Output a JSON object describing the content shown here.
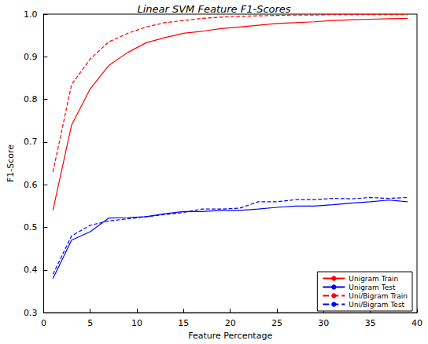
{
  "chart_data": {
    "type": "line",
    "title": "Linear SVM Feature F1-Scores",
    "x_label": "Feature Percentage",
    "y_label": "F1-Score",
    "x": [
      1,
      3,
      5,
      7,
      9,
      11,
      13,
      15,
      17,
      19,
      21,
      23,
      25,
      27,
      29,
      31,
      33,
      35,
      37,
      39
    ],
    "series": [
      {
        "name": "Unigram Train",
        "color": "#ff0000",
        "line_style": "solid",
        "marker": "none",
        "values": [
          0.54,
          0.74,
          0.825,
          0.88,
          0.91,
          0.933,
          0.945,
          0.955,
          0.96,
          0.966,
          0.97,
          0.974,
          0.978,
          0.98,
          0.982,
          0.985,
          0.987,
          0.988,
          0.989,
          0.99
        ]
      },
      {
        "name": "Unigram Test",
        "color": "#0000ff",
        "line_style": "solid",
        "marker": "none",
        "values": [
          0.38,
          0.47,
          0.49,
          0.522,
          0.523,
          0.525,
          0.532,
          0.537,
          0.537,
          0.54,
          0.54,
          0.543,
          0.547,
          0.55,
          0.55,
          0.553,
          0.557,
          0.56,
          0.564,
          0.56
        ]
      },
      {
        "name": "Uni/Bigram Train",
        "color": "#ff0000",
        "line_style": "dashed",
        "marker": "none",
        "values": [
          0.63,
          0.835,
          0.895,
          0.935,
          0.955,
          0.97,
          0.98,
          0.985,
          0.99,
          0.993,
          0.995,
          0.996,
          0.997,
          0.998,
          0.998,
          0.999,
          0.999,
          0.999,
          0.999,
          0.999
        ]
      },
      {
        "name": "Uni/Bigram Test",
        "color": "#0000ff",
        "line_style": "dashed",
        "marker": "none",
        "values": [
          0.39,
          0.48,
          0.505,
          0.515,
          0.52,
          0.525,
          0.53,
          0.535,
          0.543,
          0.543,
          0.545,
          0.56,
          0.56,
          0.565,
          0.565,
          0.568,
          0.567,
          0.57,
          0.568,
          0.57
        ]
      }
    ],
    "xlim": [
      0,
      40
    ],
    "xticks": [
      0,
      5,
      10,
      15,
      20,
      25,
      30,
      35,
      40
    ],
    "ylim": [
      0.3,
      1
    ],
    "yticks": [
      0.3,
      0.4,
      0.5,
      0.6,
      0.7,
      0.8,
      0.9,
      {
        "value": 1,
        "label": "1.0"
      }
    ],
    "grid": false,
    "legend": "lower right"
  }
}
